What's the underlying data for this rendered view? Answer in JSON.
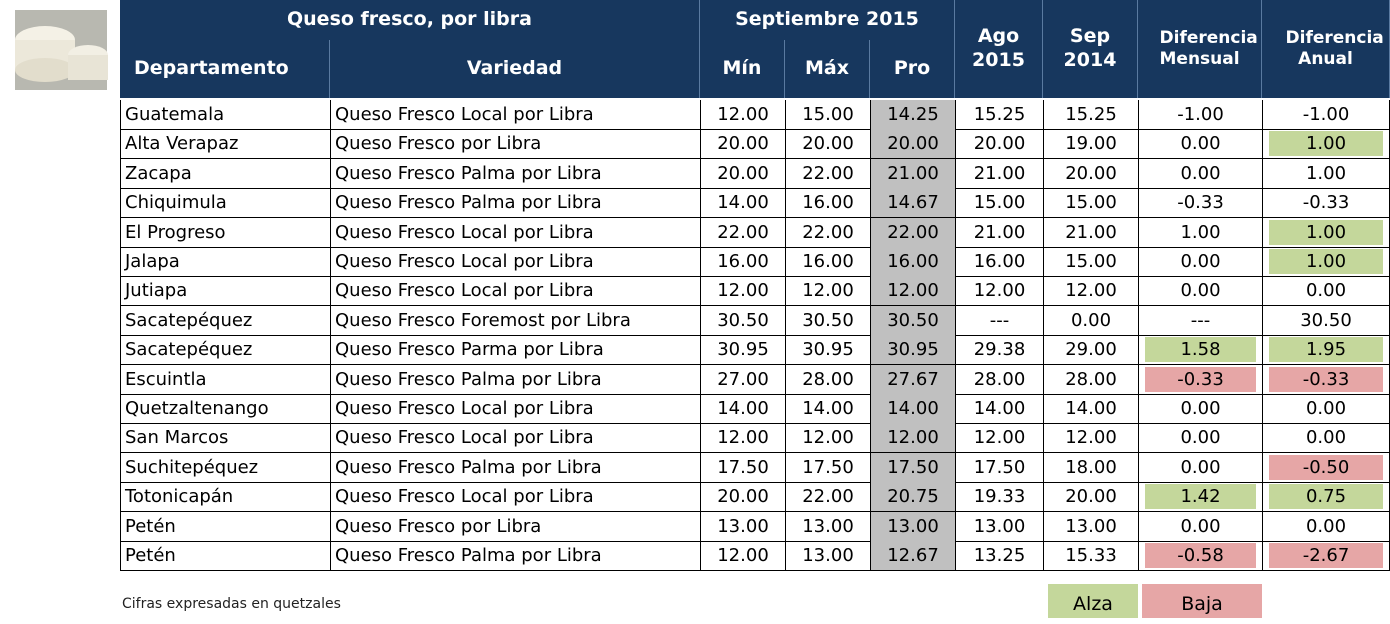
{
  "header": {
    "group_title": "Queso fresco, por libra",
    "period_title": "Septiembre 2015",
    "columns": [
      "Departamento",
      "Variedad",
      "Mín",
      "Máx",
      "Pro",
      "Ago 2015",
      "Sep 2014",
      "Diferencia Mensual",
      "Diferencia Anual"
    ]
  },
  "table": {
    "rows": [
      {
        "cells": [
          "Guatemala",
          "Queso Fresco Local por Libra",
          "12.00",
          "15.00",
          "14.25",
          "15.25",
          "15.25",
          "-1.00",
          "-1.00"
        ]
      },
      {
        "cells": [
          "Alta Verapaz",
          "Queso Fresco por Libra",
          "20.00",
          "20.00",
          "20.00",
          "20.00",
          "19.00",
          "0.00",
          "1.00"
        ],
        "anual_fill": "#c4d79b"
      },
      {
        "cells": [
          "Zacapa",
          "Queso Fresco Palma por Libra",
          "20.00",
          "22.00",
          "21.00",
          "21.00",
          "20.00",
          "0.00",
          "1.00"
        ]
      },
      {
        "cells": [
          "Chiquimula",
          "Queso Fresco Palma por Libra",
          "14.00",
          "16.00",
          "14.67",
          "15.00",
          "15.00",
          "-0.33",
          "-0.33"
        ]
      },
      {
        "cells": [
          "El Progreso",
          "Queso Fresco Local por Libra",
          "22.00",
          "22.00",
          "22.00",
          "21.00",
          "21.00",
          "1.00",
          "1.00"
        ],
        "anual_fill": "#c4d79b"
      },
      {
        "cells": [
          "Jalapa",
          "Queso Fresco Local por Libra",
          "16.00",
          "16.00",
          "16.00",
          "16.00",
          "15.00",
          "0.00",
          "1.00"
        ],
        "anual_fill": "#c4d79b"
      },
      {
        "cells": [
          "Jutiapa",
          "Queso Fresco Local por Libra",
          "12.00",
          "12.00",
          "12.00",
          "12.00",
          "12.00",
          "0.00",
          "0.00"
        ]
      },
      {
        "cells": [
          "Sacatepéquez",
          "Queso Fresco Foremost por Libra",
          "30.50",
          "30.50",
          "30.50",
          "---",
          "0.00",
          "---",
          "30.50"
        ]
      },
      {
        "cells": [
          "Sacatepéquez",
          "Queso Fresco Parma por Libra",
          "30.95",
          "30.95",
          "30.95",
          "29.38",
          "29.00",
          "1.58",
          "1.95"
        ],
        "mensual_fill": "#c4d79b",
        "anual_fill": "#c4d79b"
      },
      {
        "cells": [
          "Escuintla",
          "Queso Fresco Palma por Libra",
          "27.00",
          "28.00",
          "27.67",
          "28.00",
          "28.00",
          "-0.33",
          "-0.33"
        ],
        "mensual_fill": "#e6a6a6",
        "anual_fill": "#e6a6a6"
      },
      {
        "cells": [
          "Quetzaltenango",
          "Queso Fresco Local por Libra",
          "14.00",
          "14.00",
          "14.00",
          "14.00",
          "14.00",
          "0.00",
          "0.00"
        ]
      },
      {
        "cells": [
          "San Marcos",
          "Queso Fresco Local por Libra",
          "12.00",
          "12.00",
          "12.00",
          "12.00",
          "12.00",
          "0.00",
          "0.00"
        ]
      },
      {
        "cells": [
          "Suchitepéquez",
          "Queso Fresco Palma por Libra",
          "17.50",
          "17.50",
          "17.50",
          "17.50",
          "18.00",
          "0.00",
          "-0.50"
        ],
        "anual_fill": "#e6a6a6"
      },
      {
        "cells": [
          "Totonicapán",
          "Queso Fresco Local por Libra",
          "20.00",
          "22.00",
          "20.75",
          "19.33",
          "20.00",
          "1.42",
          "0.75"
        ],
        "mensual_fill": "#c4d79b",
        "anual_fill": "#c4d79b"
      },
      {
        "cells": [
          "Petén",
          "Queso Fresco por Libra",
          "13.00",
          "13.00",
          "13.00",
          "13.00",
          "13.00",
          "0.00",
          "0.00"
        ]
      },
      {
        "cells": [
          "Petén",
          "Queso Fresco Palma por Libra",
          "12.00",
          "13.00",
          "12.67",
          "13.25",
          "15.33",
          "-0.58",
          "-2.67"
        ],
        "mensual_fill": "#e6a6a6",
        "anual_fill": "#e6a6a6"
      }
    ]
  },
  "footer": {
    "note": "Cifras expresadas en quetzales",
    "legend": [
      {
        "label": "Alza",
        "color": "#c4d79b"
      },
      {
        "label": "Baja",
        "color": "#e6a6a6"
      }
    ]
  }
}
